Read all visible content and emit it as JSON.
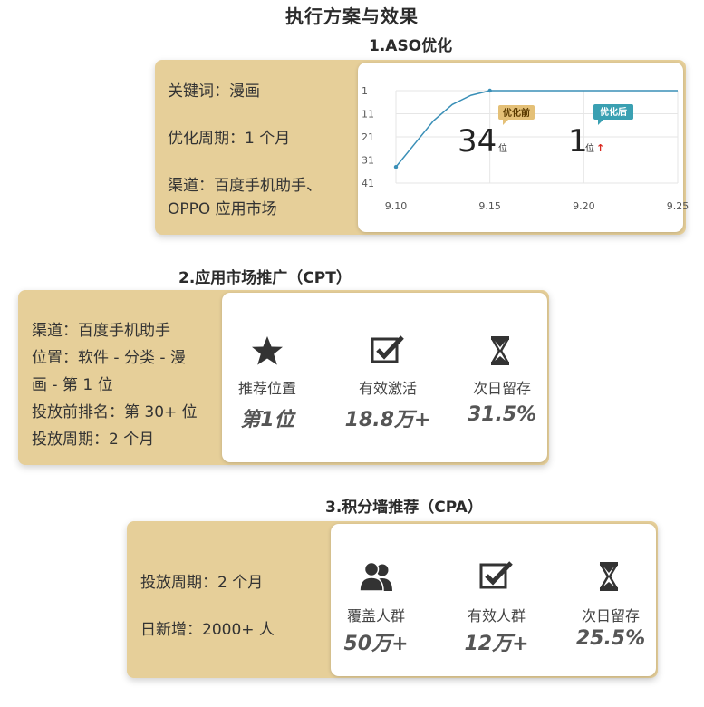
{
  "title": "执行方案与效果",
  "sections": {
    "aso": {
      "title": "1.ASO优化",
      "info": [
        "关键词：漫画",
        "优化周期：1 个月",
        "渠道：百度手机助手、",
        "OPPO 应用市场"
      ],
      "chart_data": {
        "type": "line",
        "x": [
          "9.10",
          "9.15",
          "9.20",
          "9.25"
        ],
        "yticks": [
          "1",
          "11",
          "21",
          "31",
          "41"
        ],
        "series": [
          {
            "values": [
              [
                9.1,
                34
              ],
              [
                9.11,
                24
              ],
              [
                9.12,
                14
              ],
              [
                9.13,
                7
              ],
              [
                9.14,
                3
              ],
              [
                9.15,
                1
              ],
              [
                9.2,
                1
              ],
              [
                9.25,
                1
              ]
            ]
          }
        ],
        "annotations": {
          "before_label": "优化前",
          "before_value": "34",
          "before_unit": "位",
          "after_label": "优化后",
          "after_value": "1",
          "after_unit": "位",
          "up_arrow": "↑"
        },
        "colors": {
          "line": "#3a8fb7",
          "before": "#e4c077",
          "after": "#3aa0b2",
          "arrow": "#d9281f"
        }
      }
    },
    "cpt": {
      "title": "2.应用市场推广（CPT）",
      "info": [
        "渠道：百度手机助手",
        "位置：软件 - 分类 - 漫",
        "画 - 第 1 位",
        "投放前排名：第 30+ 位",
        "投放周期：2 个月"
      ],
      "metrics": [
        {
          "icon": "star-icon",
          "label": "推荐位置",
          "value": "第1位"
        },
        {
          "icon": "checkbox-icon",
          "label": "有效激活",
          "value": "18.8万+"
        },
        {
          "icon": "hourglass-icon",
          "label": "次日留存",
          "value": "31.5%"
        }
      ]
    },
    "cpa": {
      "title": "3.积分墙推荐（CPA）",
      "info": [
        "投放周期：2 个月",
        "日新增：2000+ 人"
      ],
      "metrics": [
        {
          "icon": "users-icon",
          "label": "覆盖人群",
          "value": "50万+"
        },
        {
          "icon": "checkbox-icon",
          "label": "有效人群",
          "value": "12万+"
        },
        {
          "icon": "hourglass-icon",
          "label": "次日留存",
          "value": "25.5%"
        }
      ]
    }
  }
}
